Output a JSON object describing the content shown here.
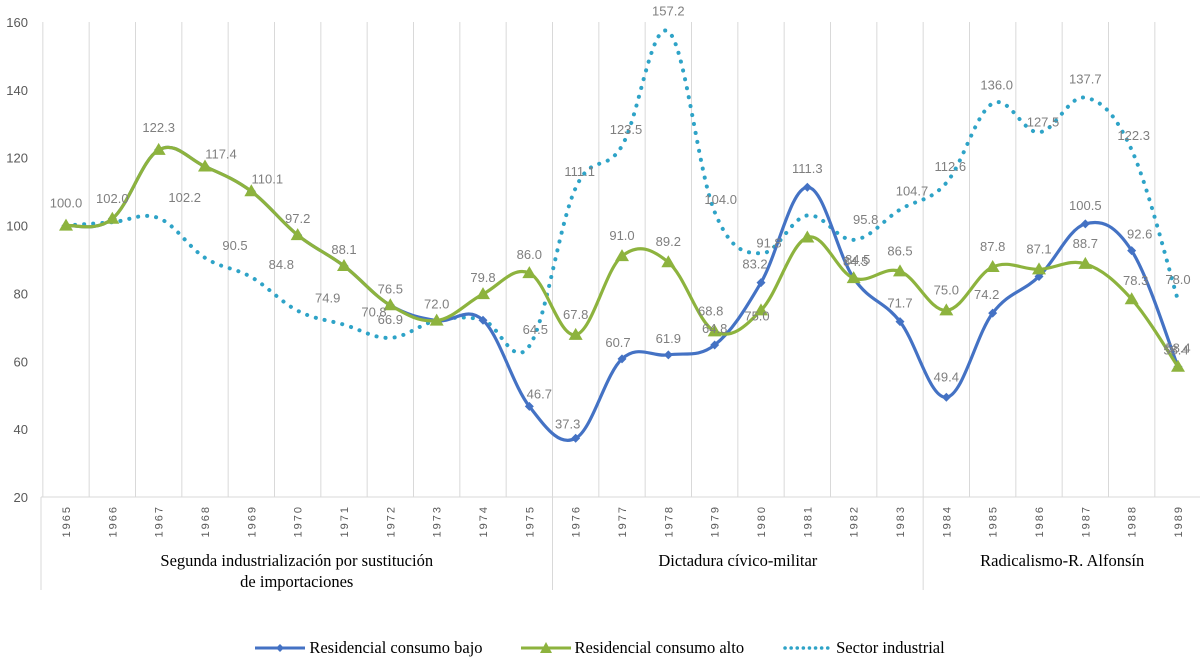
{
  "chart_data": {
    "type": "line",
    "title": "",
    "xlabel": "",
    "ylabel": "",
    "ylim": [
      20,
      160
    ],
    "yticks": [
      20,
      40,
      60,
      80,
      100,
      120,
      140,
      160
    ],
    "grid": "vertical",
    "legend_position": "bottom",
    "x": [
      "1965",
      "1966",
      "1967",
      "1968",
      "1969",
      "1970",
      "1971",
      "1972",
      "1973",
      "1974",
      "1975",
      "1976",
      "1977",
      "1978",
      "1979",
      "1980",
      "1981",
      "1982",
      "1983",
      "1984",
      "1985",
      "1986",
      "1987",
      "1988",
      "1989"
    ],
    "periods": [
      {
        "label_lines": [
          "Segunda industrialización por sustitución",
          "de importaciones"
        ],
        "from": "1965",
        "to": "1975"
      },
      {
        "label_lines": [
          "Dictadura cívico-militar"
        ],
        "from": "1976",
        "to": "1983"
      },
      {
        "label_lines": [
          "Radicalismo-R. Alfonsín"
        ],
        "from": "1984",
        "to": "1989"
      }
    ],
    "series": [
      {
        "name": "Residencial consumo bajo",
        "color": "#4472C4",
        "style": "solid",
        "marker": "diamond",
        "values": [
          100.0,
          102.0,
          122.3,
          117.4,
          110.1,
          97.2,
          88.1,
          76.5,
          72.0,
          72.1,
          46.7,
          37.3,
          60.7,
          61.9,
          64.8,
          83.2,
          111.3,
          84.5,
          71.7,
          49.4,
          74.2,
          85.0,
          100.5,
          92.6,
          58.4
        ],
        "labels": [
          "100.0",
          "102.0",
          "122.3",
          "117.4",
          "110.1",
          "97.2",
          "88.1",
          "76.5",
          "72.0",
          "72.1",
          "46.7",
          "37.3",
          "60.7",
          "61.9",
          "64.8",
          "83.2",
          "111.3",
          "84.5",
          "71.7",
          "49.4",
          "74.2",
          "",
          "100.5",
          "92.6",
          "58.4"
        ]
      },
      {
        "name": "Residencial consumo alto",
        "color": "#8DB33E",
        "style": "solid",
        "marker": "triangle",
        "values": [
          100.0,
          102.0,
          122.3,
          117.4,
          110.1,
          97.2,
          88.1,
          76.5,
          72.0,
          79.8,
          86.0,
          67.8,
          91.0,
          89.2,
          68.8,
          75.0,
          96.5,
          84.5,
          86.5,
          75.0,
          87.8,
          87.1,
          88.7,
          78.3,
          58.4
        ],
        "labels": [
          "100.0",
          "102.0",
          "122.3",
          "117.4",
          "110.1",
          "97.2",
          "88.1",
          "76.5",
          "72.0",
          "79.8",
          "86.0",
          "67.8",
          "91.0",
          "89.2",
          "68.8",
          "75.0",
          "",
          "84.5",
          "86.5",
          "75.0",
          "87.8",
          "87.1",
          "88.7",
          "78.3",
          "58.4"
        ]
      },
      {
        "name": "Sector industrial",
        "color": "#2EA3C7",
        "style": "dotted",
        "marker": "none",
        "values": [
          100.0,
          101.0,
          102.2,
          90.5,
          84.8,
          74.9,
          70.8,
          66.9,
          72.0,
          72.1,
          64.5,
          111.1,
          123.5,
          157.2,
          104.0,
          91.8,
          103.0,
          95.8,
          104.7,
          112.6,
          136.0,
          127.5,
          137.7,
          122.3,
          78.0
        ],
        "labels": [
          "",
          "",
          "102.2",
          "90.5",
          "84.8",
          "74.9",
          "70.8",
          "66.9",
          "",
          "",
          "64.5",
          "111.1",
          "123.5",
          "157.2",
          "104.0",
          "91.8",
          "",
          "95.8",
          "104.7",
          "112.6",
          "136.0",
          "127.5",
          "137.7",
          "122.3",
          "78.0"
        ]
      }
    ]
  },
  "legend": {
    "items": [
      {
        "label": "Residencial consumo bajo"
      },
      {
        "label": "Residencial consumo alto"
      },
      {
        "label": "Sector industrial"
      }
    ]
  }
}
